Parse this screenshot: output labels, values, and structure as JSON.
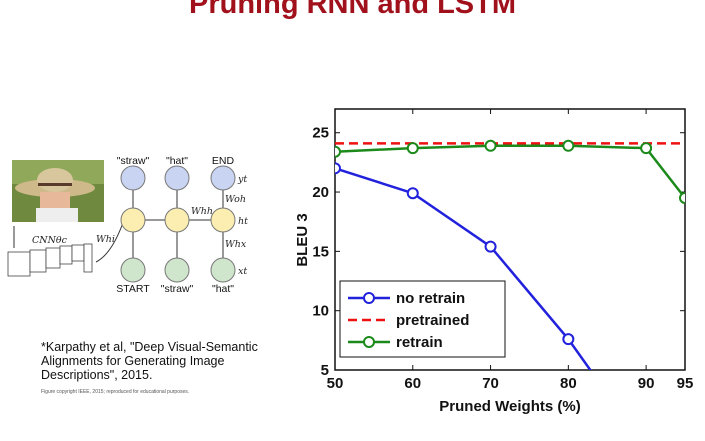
{
  "slide": {
    "title": "Pruning RNN and LSTM",
    "citation": "*Karpathy et al, \"Deep Visual-Semantic Alignments for Generating Image Descriptions\", 2015.",
    "copyright": "Figure copyright IEEE, 2015; reproduced for educational purposes."
  },
  "diagram": {
    "output_words": [
      "\"straw\"",
      "\"hat\"",
      "END"
    ],
    "input_words": [
      "START",
      "\"straw\"",
      "\"hat\""
    ],
    "labels": {
      "cnn": "CNNθc",
      "w_hi": "Whi",
      "w_hh": "Whh",
      "w_oh": "Woh",
      "w_hx": "Whx",
      "y_t": "yt",
      "h_t": "ht",
      "x_t": "xt"
    },
    "colors": {
      "output_node": "#c9d4f2",
      "hidden_node": "#fbeeb0",
      "input_node": "#cfe6cc"
    }
  },
  "chart_data": {
    "type": "line",
    "xlabel": "Pruned Weights (%)",
    "ylabel": "BLEU 3",
    "xlim": [
      50,
      95
    ],
    "ylim": [
      5,
      27
    ],
    "x_ticks": [
      50,
      60,
      70,
      80,
      90,
      95
    ],
    "y_ticks": [
      5,
      10,
      15,
      20,
      25
    ],
    "legend_placement": "bottom-left",
    "series": [
      {
        "name": "no retrain",
        "color": "#2222dd",
        "style": "solid",
        "marker": "circle",
        "x": [
          50,
          60,
          70,
          80,
          85
        ],
        "y": [
          22.0,
          19.9,
          15.4,
          7.6,
          3.0
        ]
      },
      {
        "name": "pretrained",
        "color": "#ee1111",
        "style": "dashed",
        "marker": "none",
        "x": [
          50,
          95
        ],
        "y": [
          24.1,
          24.1
        ]
      },
      {
        "name": "retrain",
        "color": "#1b8a1b",
        "style": "solid",
        "marker": "circle",
        "x": [
          50,
          60,
          70,
          80,
          90,
          95
        ],
        "y": [
          23.4,
          23.7,
          23.9,
          23.9,
          23.7,
          19.5
        ]
      }
    ]
  }
}
